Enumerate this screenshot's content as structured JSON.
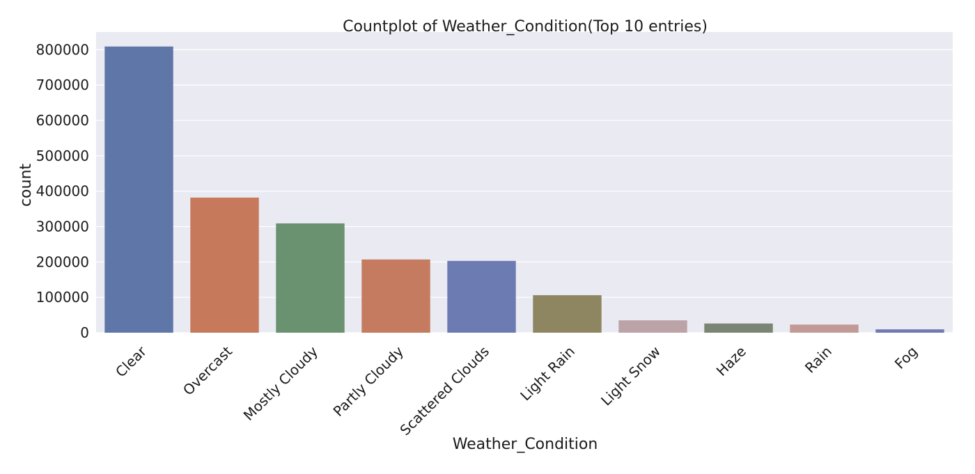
{
  "chart_data": {
    "type": "bar",
    "title": "Countplot of Weather_Condition(Top 10 entries)",
    "xlabel": "Weather_Condition",
    "ylabel": "count",
    "categories": [
      "Clear",
      "Overcast",
      "Mostly Cloudy",
      "Partly Cloudy",
      "Scattered Clouds",
      "Light Rain",
      "Light Snow",
      "Haze",
      "Rain",
      "Fog"
    ],
    "values": [
      809000,
      382000,
      309000,
      207000,
      203000,
      106000,
      35000,
      26000,
      23000,
      9500
    ],
    "colors": [
      "#5f76a8",
      "#c7795c",
      "#6a9170",
      "#c47b5f",
      "#6d7bb3",
      "#8d8660",
      "#bba3a8",
      "#7b8574",
      "#c19a96",
      "#6f7ab1"
    ],
    "yticks": [
      0,
      100000,
      200000,
      300000,
      400000,
      500000,
      600000,
      700000,
      800000
    ],
    "ylim": [
      0,
      850000
    ],
    "grid": true,
    "background": "#eaeaf2",
    "grid_color": "#ffffff"
  }
}
